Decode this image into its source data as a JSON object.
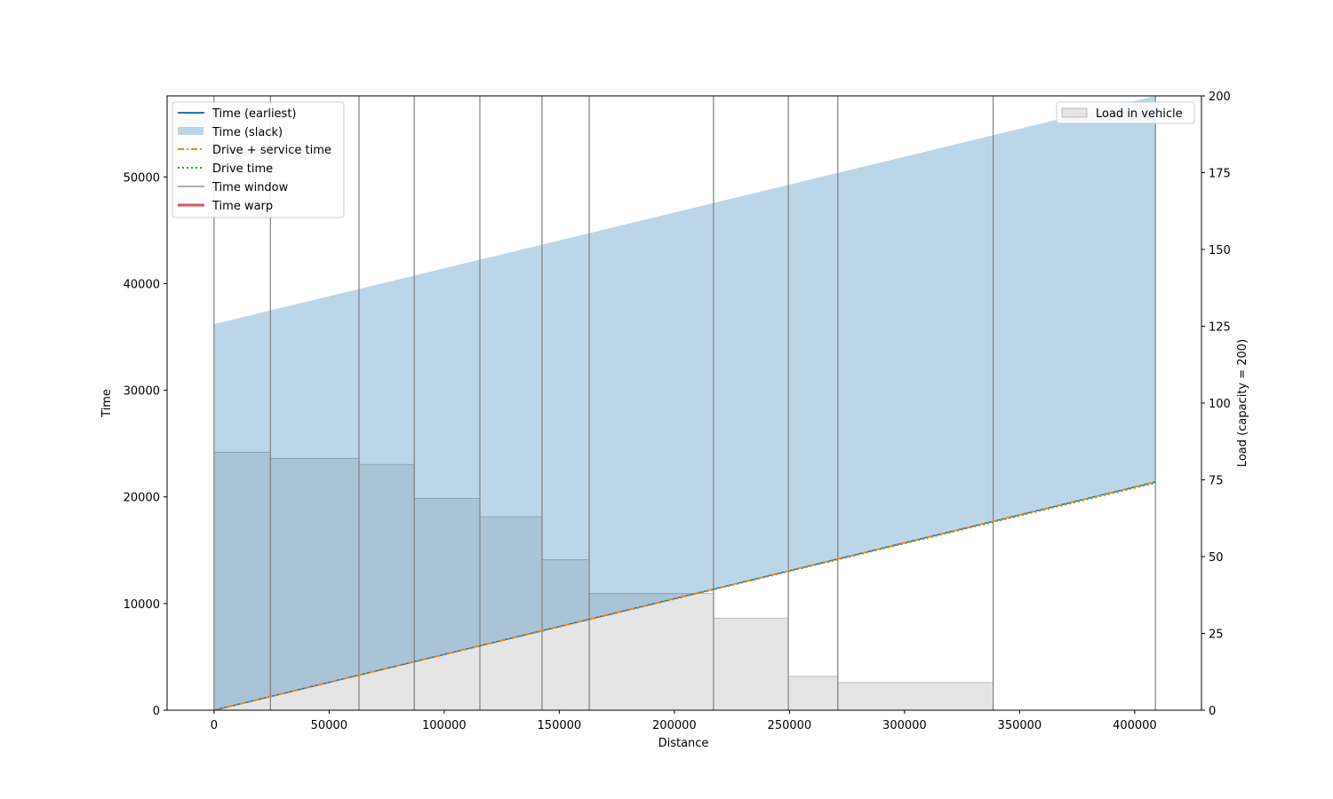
{
  "chart_data": {
    "type": "line",
    "xlabel": "Distance",
    "ylabel": "Time",
    "y2label": "Load (capacity = 200)",
    "xlim": [
      -20400,
      429000
    ],
    "ylim": [
      0,
      57600
    ],
    "y2lim": [
      0,
      200
    ],
    "x_ticks": [
      0,
      50000,
      100000,
      150000,
      200000,
      250000,
      300000,
      350000,
      400000
    ],
    "y_ticks": [
      0,
      10000,
      20000,
      30000,
      40000,
      50000
    ],
    "y2_ticks": [
      0,
      25,
      50,
      75,
      100,
      125,
      150,
      175,
      200
    ],
    "grid": false,
    "legend_left": {
      "position": "upper-left",
      "entries": [
        "Time (earliest)",
        "Time (slack)",
        "Drive + service time",
        "Drive time",
        "Time window",
        "Time warp"
      ]
    },
    "legend_right": {
      "position": "upper-right",
      "entries": [
        "Load in vehicle"
      ]
    },
    "colors": {
      "earliest": "#1f77b4",
      "slack": "#1f77b4",
      "drive_service": "#ff7f0e",
      "drive": "#2ca02c",
      "time_window": "#808080",
      "time_warp": "#d62728",
      "load": "#d3d3d3"
    },
    "stops_distance": [
      0,
      24500,
      63000,
      87000,
      115500,
      142500,
      163000,
      217000,
      249500,
      271000,
      338500,
      409000
    ],
    "series": [
      {
        "name": "Time (earliest)",
        "x": [
          0,
          409000
        ],
        "y": [
          0,
          21400
        ]
      },
      {
        "name": "Time (slack)",
        "x": [
          0,
          409000
        ],
        "y_low": [
          0,
          21400
        ],
        "y_high": [
          36200,
          57600
        ]
      },
      {
        "name": "Drive + service time",
        "x": [
          0,
          409000
        ],
        "y": [
          0,
          21400
        ]
      },
      {
        "name": "Drive time",
        "x": [
          0,
          409000
        ],
        "y": [
          0,
          21300
        ]
      },
      {
        "name": "Time warp",
        "x": [],
        "y": []
      }
    ],
    "load_steps": [
      {
        "x0": 0,
        "x1": 24500,
        "load": 84
      },
      {
        "x0": 24500,
        "x1": 63000,
        "load": 82
      },
      {
        "x0": 63000,
        "x1": 87000,
        "load": 80
      },
      {
        "x0": 87000,
        "x1": 115500,
        "load": 69
      },
      {
        "x0": 115500,
        "x1": 142500,
        "load": 63
      },
      {
        "x0": 142500,
        "x1": 163000,
        "load": 49
      },
      {
        "x0": 163000,
        "x1": 217000,
        "load": 38
      },
      {
        "x0": 217000,
        "x1": 249500,
        "load": 30
      },
      {
        "x0": 249500,
        "x1": 271000,
        "load": 11
      },
      {
        "x0": 271000,
        "x1": 338500,
        "load": 9
      }
    ]
  }
}
